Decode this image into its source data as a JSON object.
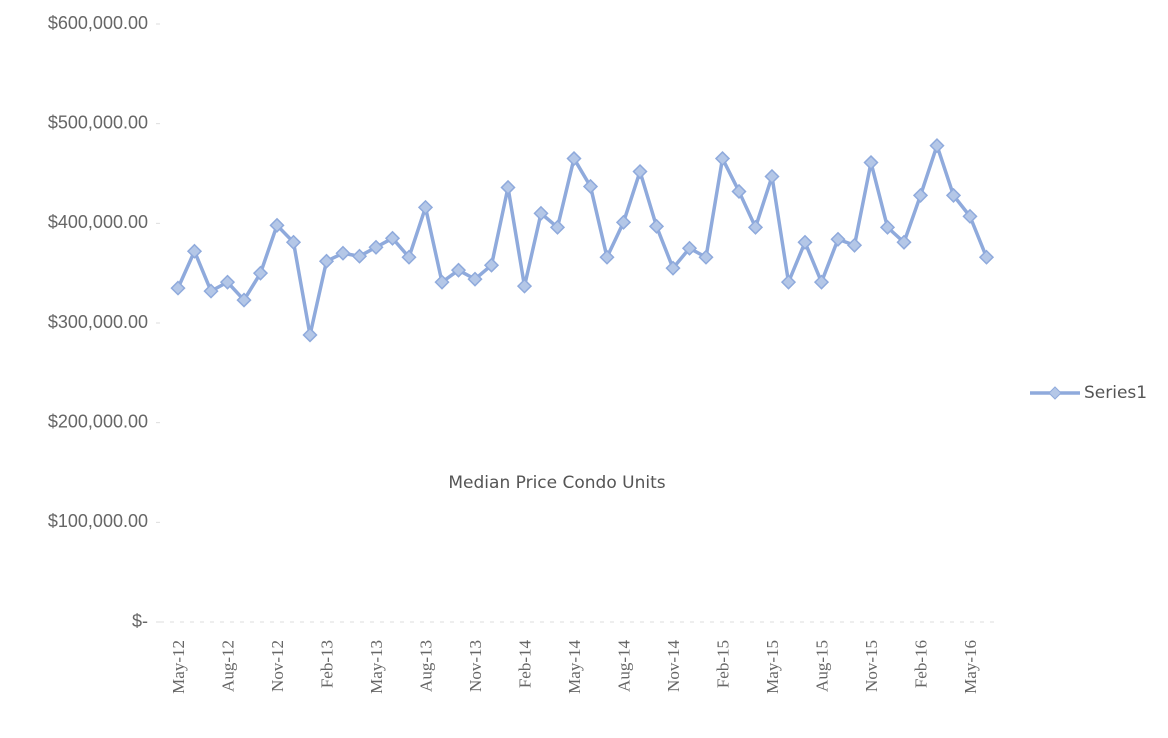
{
  "chart_data": {
    "type": "line",
    "title": "Median Price Condo Units",
    "categories": [
      "May-12",
      null,
      null,
      "Aug-12",
      null,
      null,
      "Nov-12",
      null,
      null,
      "Feb-13",
      null,
      null,
      "May-13",
      null,
      null,
      "Aug-13",
      null,
      null,
      "Nov-13",
      null,
      null,
      "Feb-14",
      null,
      null,
      "May-14",
      null,
      null,
      "Aug-14",
      null,
      null,
      "Nov-14",
      null,
      null,
      "Feb-15",
      null,
      null,
      "May-15",
      null,
      null,
      "Aug-15",
      null,
      null,
      "Nov-15",
      null,
      null,
      "Feb-16",
      null,
      null,
      "May-16",
      null
    ],
    "series": [
      {
        "name": "Series1",
        "color": "#8faadc",
        "values": [
          335000,
          372000,
          332000,
          341000,
          323000,
          350000,
          398000,
          381000,
          288000,
          362000,
          370000,
          367000,
          376000,
          385000,
          366000,
          416000,
          341000,
          353000,
          344000,
          358000,
          436000,
          337000,
          410000,
          396000,
          465000,
          437000,
          366000,
          401000,
          452000,
          397000,
          355000,
          375000,
          366000,
          465000,
          432000,
          396000,
          447000,
          341000,
          381000,
          341000,
          384000,
          378000,
          461000,
          396000,
          381000,
          428000,
          478000,
          428000,
          407000,
          366000
        ]
      }
    ],
    "ylim": [
      0,
      600000
    ],
    "yticks": [
      {
        "value": 0,
        "label": "$-"
      },
      {
        "value": 100000,
        "label": "$100,000.00"
      },
      {
        "value": 200000,
        "label": "$200,000.00"
      },
      {
        "value": 300000,
        "label": "$300,000.00"
      },
      {
        "value": 400000,
        "label": "$400,000.00"
      },
      {
        "value": 500000,
        "label": "$500,000.00"
      },
      {
        "value": 600000,
        "label": "$600,000.00"
      }
    ],
    "grid": false,
    "legend": "right"
  }
}
